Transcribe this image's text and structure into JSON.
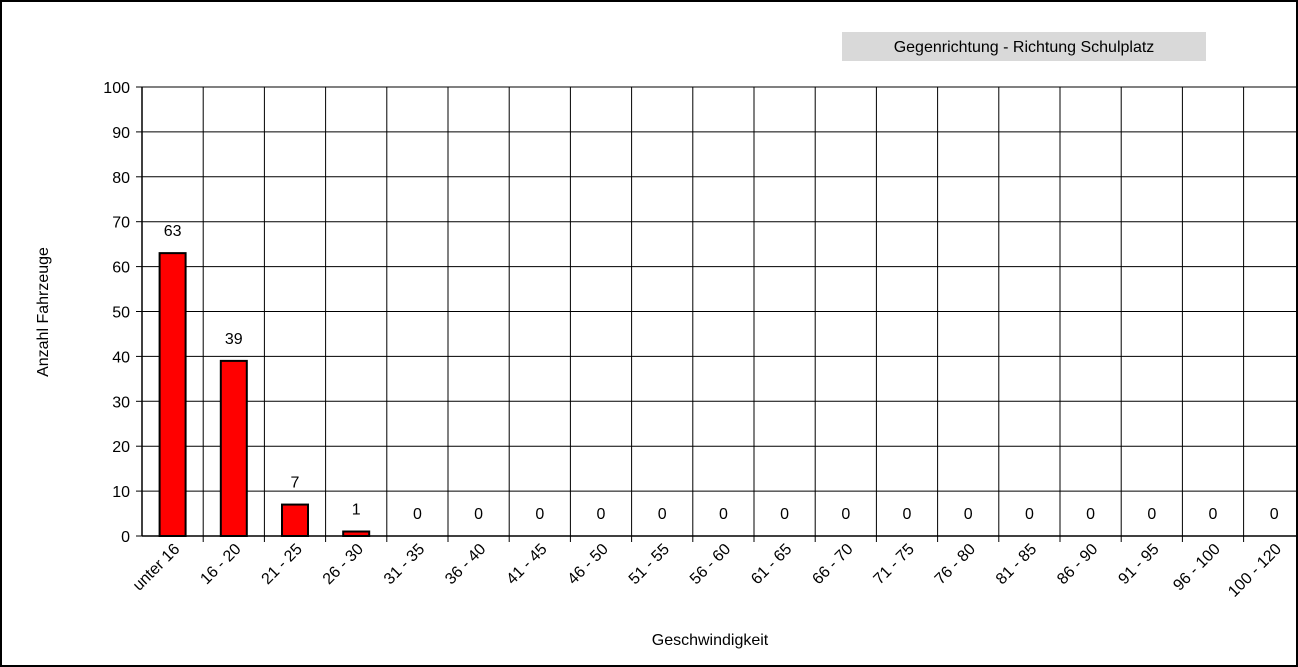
{
  "chart_data": {
    "type": "bar",
    "title": "Gegenrichtung - Richtung Schulplatz",
    "xlabel": "Geschwindigkeit",
    "ylabel": "Anzahl Fahrzeuge",
    "ylim": [
      0,
      100
    ],
    "yticks": [
      "0",
      "10",
      "20",
      "30",
      "40",
      "50",
      "60",
      "70",
      "80",
      "90",
      "100"
    ],
    "categories": [
      "unter 16",
      "16 -  20",
      "21 -  25",
      "26 -  30",
      "31 -  35",
      "36 -  40",
      "41 -  45",
      "46 -  50",
      "51 -  55",
      "56 -  60",
      "61 -  65",
      "66 -  70",
      "71 -  75",
      "76 -  80",
      "81 -  85",
      "86 -  90",
      "91 -  95",
      "96 -  100",
      "100 - 120"
    ],
    "values": [
      63,
      39,
      7,
      1,
      0,
      0,
      0,
      0,
      0,
      0,
      0,
      0,
      0,
      0,
      0,
      0,
      0,
      0,
      0
    ],
    "data_labels": [
      "63",
      "39",
      "7",
      "1",
      "0",
      "0",
      "0",
      "0",
      "0",
      "0",
      "0",
      "0",
      "0",
      "0",
      "0",
      "0",
      "0",
      "0",
      "0"
    ],
    "grid": true,
    "legend": "none",
    "colors": {
      "bar": "#ff0000",
      "bar_stroke": "#000000",
      "grid": "#000000",
      "title_bg": "#d9d9d9"
    }
  }
}
